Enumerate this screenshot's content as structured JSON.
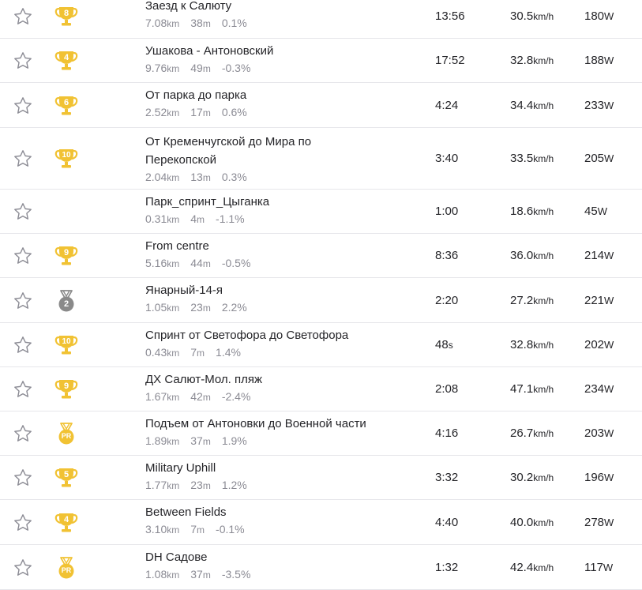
{
  "segments": [
    {
      "name": "Заезд к Салюту",
      "name_line2": "",
      "distance": "7.08",
      "distance_unit": "km",
      "elevation": "38",
      "elevation_unit": "m",
      "grade": "0.1%",
      "time": "13:56",
      "time_unit": "",
      "speed": "30.5",
      "speed_unit": "km/h",
      "power": "180",
      "power_unit": "W",
      "award": {
        "type": "cup",
        "text": "8",
        "color": "#f1c233"
      }
    },
    {
      "name": "Ушакова - Антоновский",
      "name_line2": "",
      "distance": "9.76",
      "distance_unit": "km",
      "elevation": "49",
      "elevation_unit": "m",
      "grade": "-0.3%",
      "time": "17:52",
      "time_unit": "",
      "speed": "32.8",
      "speed_unit": "km/h",
      "power": "188",
      "power_unit": "W",
      "award": {
        "type": "cup",
        "text": "4",
        "color": "#f1c233"
      }
    },
    {
      "name": "От парка до парка",
      "name_line2": "",
      "distance": "2.52",
      "distance_unit": "km",
      "elevation": "17",
      "elevation_unit": "m",
      "grade": "0.6%",
      "time": "4:24",
      "time_unit": "",
      "speed": "34.4",
      "speed_unit": "km/h",
      "power": "233",
      "power_unit": "W",
      "award": {
        "type": "cup",
        "text": "6",
        "color": "#f1c233"
      }
    },
    {
      "name": "От Кременчугской до Мира по",
      "name_line2": "Перекопской",
      "distance": "2.04",
      "distance_unit": "km",
      "elevation": "13",
      "elevation_unit": "m",
      "grade": "0.3%",
      "time": "3:40",
      "time_unit": "",
      "speed": "33.5",
      "speed_unit": "km/h",
      "power": "205",
      "power_unit": "W",
      "award": {
        "type": "cup",
        "text": "10",
        "color": "#f1c233"
      }
    },
    {
      "name": "Парк_спринт_Цыганка",
      "name_line2": "",
      "distance": "0.31",
      "distance_unit": "km",
      "elevation": "4",
      "elevation_unit": "m",
      "grade": "-1.1%",
      "time": "1:00",
      "time_unit": "",
      "speed": "18.6",
      "speed_unit": "km/h",
      "power": "45",
      "power_unit": "W",
      "award": {
        "type": "none",
        "text": "",
        "color": ""
      }
    },
    {
      "name": "From centre",
      "name_line2": "",
      "distance": "5.16",
      "distance_unit": "km",
      "elevation": "44",
      "elevation_unit": "m",
      "grade": "-0.5%",
      "time": "8:36",
      "time_unit": "",
      "speed": "36.0",
      "speed_unit": "km/h",
      "power": "214",
      "power_unit": "W",
      "award": {
        "type": "cup",
        "text": "9",
        "color": "#f1c233"
      }
    },
    {
      "name": "Янарный-14-я",
      "name_line2": "",
      "distance": "1.05",
      "distance_unit": "km",
      "elevation": "23",
      "elevation_unit": "m",
      "grade": "2.2%",
      "time": "2:20",
      "time_unit": "",
      "speed": "27.2",
      "speed_unit": "km/h",
      "power": "221",
      "power_unit": "W",
      "award": {
        "type": "medal",
        "text": "2",
        "color": "#8a8a8a"
      }
    },
    {
      "name": "Спринт от Светофора до Светофора",
      "name_line2": "",
      "distance": "0.43",
      "distance_unit": "km",
      "elevation": "7",
      "elevation_unit": "m",
      "grade": "1.4%",
      "time": "48",
      "time_unit": "s",
      "speed": "32.8",
      "speed_unit": "km/h",
      "power": "202",
      "power_unit": "W",
      "award": {
        "type": "cup",
        "text": "10",
        "color": "#f1c233"
      }
    },
    {
      "name": "ДХ Салют-Мол. пляж",
      "name_line2": "",
      "distance": "1.67",
      "distance_unit": "km",
      "elevation": "42",
      "elevation_unit": "m",
      "grade": "-2.4%",
      "time": "2:08",
      "time_unit": "",
      "speed": "47.1",
      "speed_unit": "km/h",
      "power": "234",
      "power_unit": "W",
      "award": {
        "type": "cup",
        "text": "9",
        "color": "#f1c233"
      }
    },
    {
      "name": "Подъем от Антоновки до Военной части",
      "name_line2": "",
      "distance": "1.89",
      "distance_unit": "km",
      "elevation": "37",
      "elevation_unit": "m",
      "grade": "1.9%",
      "time": "4:16",
      "time_unit": "",
      "speed": "26.7",
      "speed_unit": "km/h",
      "power": "203",
      "power_unit": "W",
      "award": {
        "type": "medal",
        "text": "PR",
        "color": "#f1c233"
      }
    },
    {
      "name": "Military Uphill",
      "name_line2": "",
      "distance": "1.77",
      "distance_unit": "km",
      "elevation": "23",
      "elevation_unit": "m",
      "grade": "1.2%",
      "time": "3:32",
      "time_unit": "",
      "speed": "30.2",
      "speed_unit": "km/h",
      "power": "196",
      "power_unit": "W",
      "award": {
        "type": "cup",
        "text": "5",
        "color": "#f1c233"
      }
    },
    {
      "name": "Between Fields",
      "name_line2": "",
      "distance": "3.10",
      "distance_unit": "km",
      "elevation": "7",
      "elevation_unit": "m",
      "grade": "-0.1%",
      "time": "4:40",
      "time_unit": "",
      "speed": "40.0",
      "speed_unit": "km/h",
      "power": "278",
      "power_unit": "W",
      "award": {
        "type": "cup",
        "text": "4",
        "color": "#f1c233"
      }
    },
    {
      "name": "DH Садове",
      "name_line2": "",
      "distance": "1.08",
      "distance_unit": "km",
      "elevation": "37",
      "elevation_unit": "m",
      "grade": "-3.5%",
      "time": "1:32",
      "time_unit": "",
      "speed": "42.4",
      "speed_unit": "km/h",
      "power": "117",
      "power_unit": "W",
      "award": {
        "type": "medal",
        "text": "PR",
        "color": "#f1c233"
      }
    }
  ],
  "colors": {
    "star_outline": "#8b8b94",
    "gold": "#f1c233",
    "silver": "#8a8a8a",
    "muted_text": "#8b8b94",
    "divider": "#e6e6ea"
  }
}
